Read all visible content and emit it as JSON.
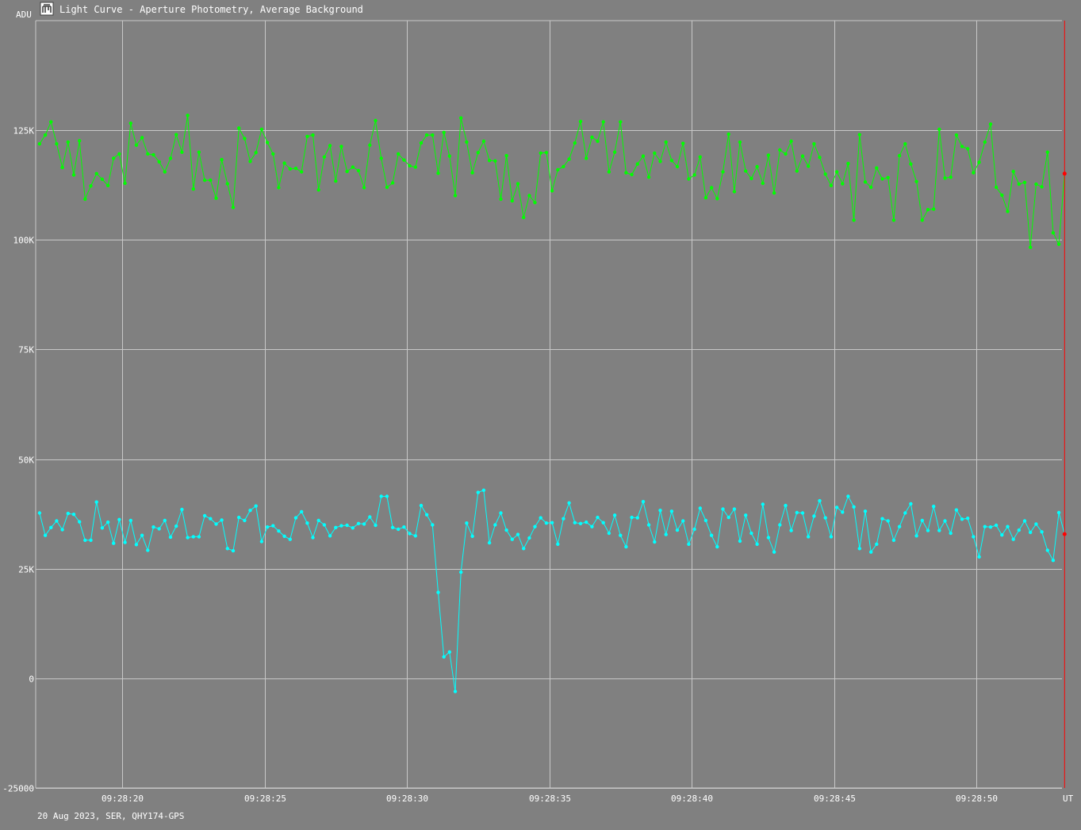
{
  "window": {
    "title": "Light Curve - Aperture Photometry, Average Background",
    "icon": "light-curve-app-icon"
  },
  "footer": {
    "info": "20 Aug 2023, SER, QHY174-GPS"
  },
  "colors": {
    "background": "#808080",
    "grid": "#c8c8c8",
    "target": "#00ffff",
    "comparison": "#00ff00",
    "cursor": "#ff0000"
  },
  "chart_data": {
    "type": "line",
    "ylabel": "ADU",
    "xlabel": "UT",
    "ylim": [
      -25000,
      150000
    ],
    "xlim": [
      17.1,
      53.1
    ],
    "yticks": [
      -25000,
      0,
      25000,
      50000,
      75000,
      100000,
      125000
    ],
    "ytick_labels": [
      "-25000",
      "0",
      "25K",
      "50K",
      "75K",
      "100K",
      "125K"
    ],
    "xticks": [
      20,
      25,
      30,
      35,
      40,
      45,
      50
    ],
    "xtick_labels": [
      "09:28:20",
      "09:28:25",
      "09:28:30",
      "09:28:35",
      "09:28:40",
      "09:28:45",
      "09:28:50"
    ],
    "x_start": 17.1,
    "x_step": 0.2,
    "grid": true,
    "cursor_x": 53.1,
    "series": [
      {
        "color": "#00ff00",
        "values": [
          121.9,
          123.9,
          126.9,
          121.9,
          116.5,
          122.3,
          114.8,
          122.6,
          109.3,
          112.3,
          115.1,
          113.8,
          112.4,
          118.6,
          119.6,
          112.9,
          126.6,
          121.6,
          123.3,
          119.6,
          119.4,
          117.8,
          115.5,
          118.6,
          124.0,
          120.0,
          128.4,
          111.6,
          120.0,
          113.6,
          113.6,
          109.5,
          118.3,
          112.8,
          107.4,
          125.5,
          123.1,
          117.9,
          119.9,
          125.2,
          122.2,
          119.6,
          111.9,
          117.5,
          116.2,
          116.3,
          115.5,
          123.6,
          123.9,
          111.4,
          118.9,
          121.5,
          113.4,
          121.3,
          115.6,
          116.6,
          115.8,
          111.9,
          121.6,
          127.2,
          118.6,
          112.0,
          113.0,
          119.6,
          118.2,
          116.9,
          116.6,
          122.1,
          123.9,
          123.9,
          115.2,
          124.5,
          119.1,
          110.1,
          127.8,
          122.3,
          115.3,
          119.9,
          122.5,
          118.1,
          118.0,
          109.3,
          119.2,
          108.9,
          112.8,
          105.1,
          110.1,
          108.5,
          119.8,
          119.9,
          111.2,
          116.0,
          116.7,
          118.4,
          122.1,
          127.0,
          118.6,
          123.4,
          122.5,
          126.9,
          115.5,
          120.0,
          126.9,
          115.3,
          114.9,
          117.3,
          119.1,
          114.3,
          119.8,
          117.9,
          122.3,
          118.1,
          116.7,
          122.0,
          113.9,
          114.8,
          118.9,
          109.6,
          111.9,
          109.4,
          115.5,
          124.1,
          111.0,
          122.3,
          115.7,
          114.0,
          116.7,
          112.9,
          119.3,
          110.7,
          120.5,
          119.6,
          122.5,
          115.7,
          119.1,
          116.8,
          121.9,
          118.8,
          115.0,
          112.4,
          115.5,
          112.8,
          117.4,
          104.5,
          124.0,
          113.2,
          112.0,
          116.4,
          113.9,
          114.2,
          104.5,
          119.2,
          121.9,
          117.3,
          113.3,
          104.5,
          106.9,
          107.0,
          125.2,
          114.1,
          114.3,
          123.9,
          121.3,
          120.8,
          115.3,
          117.7,
          122.3,
          126.4,
          112.0,
          110.2,
          106.5,
          115.6,
          112.7,
          113.1,
          98.3,
          112.7,
          112.1,
          120.0,
          101.6,
          99.0,
          115.1
        ]
      },
      {
        "color": "#00ffff",
        "values": [
          37.7,
          32.6,
          34.4,
          35.9,
          33.9,
          37.6,
          37.4,
          35.7,
          31.5,
          31.5,
          40.2,
          34.3,
          35.6,
          30.8,
          36.2,
          31.0,
          36.0,
          30.5,
          32.6,
          29.2,
          34.5,
          34.1,
          36.0,
          32.2,
          34.7,
          38.5,
          32.1,
          32.3,
          32.3,
          37.1,
          36.4,
          35.2,
          36.1,
          29.6,
          29.1,
          36.7,
          36.0,
          38.3,
          39.3,
          31.2,
          34.5,
          34.8,
          33.6,
          32.4,
          31.7,
          36.6,
          38.0,
          35.4,
          32.1,
          36.0,
          35.0,
          32.5,
          34.4,
          34.8,
          34.9,
          34.3,
          35.3,
          35.2,
          36.8,
          34.9,
          41.5,
          41.5,
          34.4,
          34.0,
          34.5,
          33.0,
          32.5,
          39.4,
          37.3,
          35.0,
          19.6,
          4.9,
          6.0,
          -3.0,
          24.2,
          35.4,
          32.4,
          42.4,
          42.9,
          30.9,
          35.0,
          37.7,
          33.8,
          31.7,
          32.8,
          29.6,
          32.0,
          34.6,
          36.6,
          35.4,
          35.5,
          30.6,
          36.4,
          40.0,
          35.5,
          35.3,
          35.6,
          34.6,
          36.7,
          35.5,
          33.1,
          37.2,
          32.6,
          30.0,
          36.7,
          36.6,
          40.3,
          35.0,
          31.1,
          38.3,
          32.8,
          38.1,
          33.8,
          35.9,
          30.6,
          34.0,
          38.8,
          36.0,
          32.6,
          30.0,
          38.6,
          36.7,
          38.6,
          31.3,
          37.2,
          33.1,
          30.6,
          39.7,
          32.1,
          28.8,
          35.0,
          39.4,
          33.7,
          37.8,
          37.7,
          32.3,
          37.0,
          40.5,
          36.6,
          32.3,
          39.0,
          37.9,
          41.5,
          39.1,
          29.6,
          38.1,
          28.8,
          30.6,
          36.4,
          35.9,
          31.5,
          34.6,
          37.7,
          39.8,
          32.5,
          36.0,
          33.7,
          39.2,
          33.7,
          35.9,
          33.1,
          38.4,
          36.3,
          36.5,
          32.3,
          27.7,
          34.6,
          34.5,
          34.9,
          32.7,
          34.6,
          31.7,
          33.8,
          35.9,
          33.3,
          35.2,
          33.4,
          29.2,
          26.9,
          37.8,
          32.9
        ]
      }
    ]
  }
}
